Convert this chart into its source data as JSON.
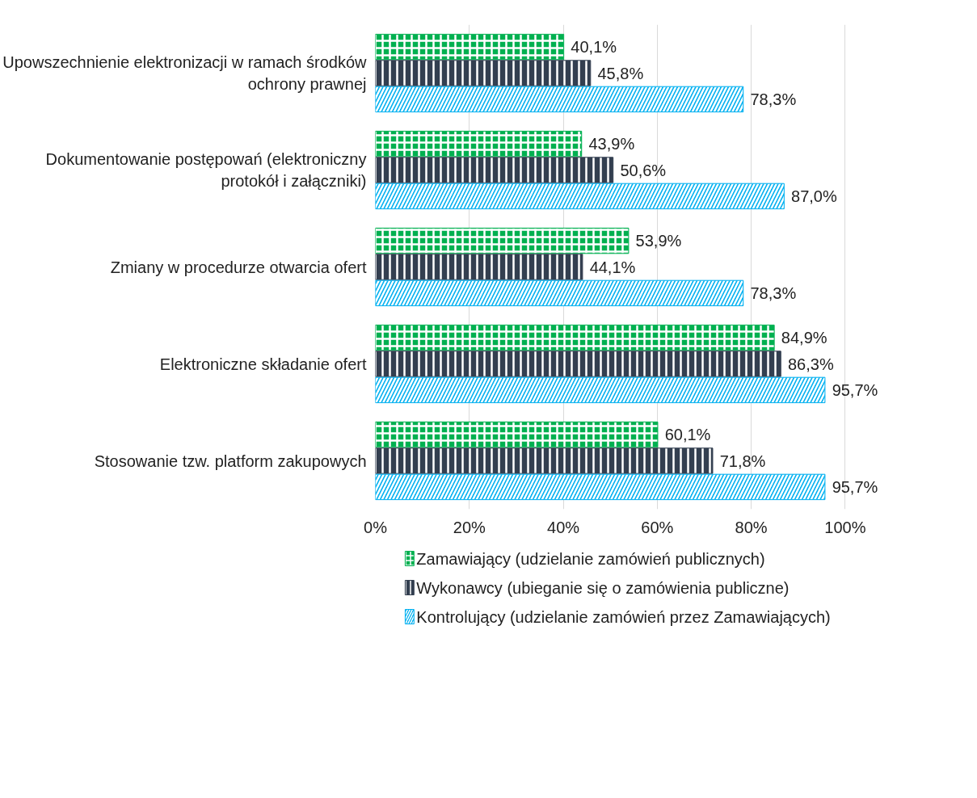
{
  "chart_data": {
    "type": "bar",
    "orientation": "horizontal",
    "categories": [
      "Upowszechnienie elektronizacji w ramach środków ochrony prawnej",
      "Dokumentowanie postępowań (elektroniczny protokół i załączniki)",
      "Zmiany w procedurze otwarcia ofert",
      "Elektroniczne składanie ofert",
      "Stosowanie tzw. platform zakupowych"
    ],
    "series": [
      {
        "name": "Zamawiający (udzielanie zamówień publicznych)",
        "color": "#00b050",
        "values": [
          40.1,
          43.9,
          53.9,
          84.9,
          60.1
        ],
        "value_labels": [
          "40,1%",
          "43,9%",
          "53,9%",
          "84,9%",
          "60,1%"
        ]
      },
      {
        "name": "Wykonawcy (ubieganie się o zamówienia publiczne)",
        "color": "#333f50",
        "values": [
          45.8,
          50.6,
          44.1,
          86.3,
          71.8
        ],
        "value_labels": [
          "45,8%",
          "50,6%",
          "44,1%",
          "86,3%",
          "71,8%"
        ]
      },
      {
        "name": "Kontrolujący (udzielanie zamówień przez Zamawiających)",
        "color": "#00b0f0",
        "values": [
          78.3,
          87.0,
          78.3,
          95.7,
          95.7
        ],
        "value_labels": [
          "78,3%",
          "87,0%",
          "78,3%",
          "95,7%",
          "95,7%"
        ]
      }
    ],
    "xlim": [
      0,
      100
    ],
    "xticks": [
      {
        "value": 0,
        "label": "0%"
      },
      {
        "value": 20,
        "label": "20%"
      },
      {
        "value": 40,
        "label": "40%"
      },
      {
        "value": 60,
        "label": "60%"
      },
      {
        "value": 80,
        "label": "80%"
      },
      {
        "value": 100,
        "label": "100%"
      }
    ],
    "grid": "x",
    "legend": "bottom"
  }
}
